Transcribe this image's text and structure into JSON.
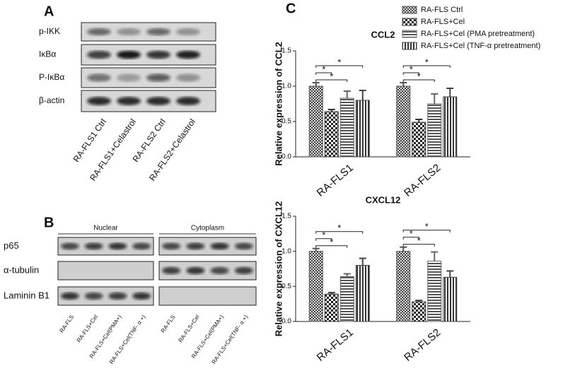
{
  "panel_a": {
    "label": "A",
    "rows": [
      "p-IKK",
      "IκBα",
      "P-IκBα",
      "β-actin"
    ],
    "lanes": [
      "RA-FLS1 Ctrl",
      "RA-FLS1+Celastrol",
      "RA-FLS2 Ctrl",
      "RA-FLS2+Celastrol"
    ]
  },
  "panel_b": {
    "label": "B",
    "groups": [
      "Nuclear",
      "Cytoplasm"
    ],
    "rows": [
      "p65",
      "α-tubulin",
      "Laminin B1"
    ],
    "lanes": [
      "RA-FLS",
      "RA-FLS+Cel",
      "RA-FLS+Cel(PMA+)",
      "RA-FLS+Cel(TNF- α +)"
    ]
  },
  "panel_c": {
    "label": "C"
  },
  "chart_data": [
    {
      "type": "bar",
      "title": "CCL2",
      "y_label": "Relative expression of CCL2",
      "categories": [
        "RA-FLS1",
        "RA-FLS2"
      ],
      "ylim": [
        0,
        1.5
      ],
      "yticks": [
        {
          "value": 0,
          "label": "0.0"
        },
        {
          "value": 0.5,
          "label": "0.5"
        },
        {
          "value": 1,
          "label": "1.0"
        },
        {
          "value": 1.5,
          "label": "1.5"
        }
      ],
      "series": [
        {
          "name": "RA-FLS Ctrl",
          "color": "#555555",
          "values": [
            1.0,
            1.0
          ],
          "errors": [
            0.05,
            0.05
          ]
        },
        {
          "name": "RA-FLS+Cel",
          "color": "#333333",
          "values": [
            0.64,
            0.49
          ],
          "errors": [
            0.03,
            0.04
          ]
        },
        {
          "name": "RA-FLS+Cel (PMA pretreatment)",
          "color": "#666666",
          "values": [
            0.83,
            0.75
          ],
          "errors": [
            0.1,
            0.14
          ]
        },
        {
          "name": "RA-FLS+Cel (TNF-α  pretreatment)",
          "color": "#444444",
          "values": [
            0.8,
            0.85
          ],
          "errors": [
            0.14,
            0.12
          ]
        }
      ],
      "significance": [
        [
          "*",
          "*",
          "*"
        ],
        [
          "*",
          "*",
          "*"
        ]
      ]
    },
    {
      "type": "bar",
      "title": "CXCL12",
      "y_label": "Relative expression of CXCL12",
      "categories": [
        "RA-FLS1",
        "RA-FLS2"
      ],
      "ylim": [
        0,
        1.5
      ],
      "yticks": [
        {
          "value": 0,
          "label": "0.0"
        },
        {
          "value": 0.5,
          "label": "0.5"
        },
        {
          "value": 1,
          "label": "1.0"
        },
        {
          "value": 1.5,
          "label": "1.5"
        }
      ],
      "series": [
        {
          "name": "RA-FLS Ctrl",
          "color": "#555555",
          "values": [
            1.0,
            1.0
          ],
          "errors": [
            0.04,
            0.06
          ]
        },
        {
          "name": "RA-FLS+Cel",
          "color": "#333333",
          "values": [
            0.39,
            0.28
          ],
          "errors": [
            0.02,
            0.02
          ]
        },
        {
          "name": "RA-FLS+Cel (PMA pretreatment)",
          "color": "#666666",
          "values": [
            0.64,
            0.86
          ],
          "errors": [
            0.04,
            0.13
          ]
        },
        {
          "name": "RA-FLS+Cel (TNF-α  pretreatment)",
          "color": "#444444",
          "values": [
            0.8,
            0.63
          ],
          "errors": [
            0.1,
            0.09
          ]
        }
      ],
      "significance": [
        [
          "*",
          "*",
          "*"
        ],
        [
          "*",
          "*",
          "*"
        ]
      ]
    }
  ]
}
